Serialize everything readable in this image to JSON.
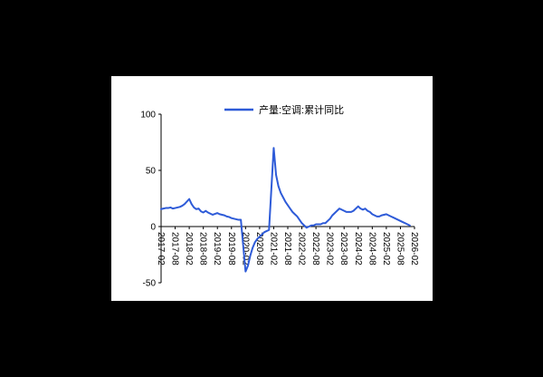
{
  "page": {
    "background_color": "#000000",
    "panel_background_color": "#ffffff"
  },
  "chart_data": {
    "type": "line",
    "title": "",
    "legend_position": "top-center",
    "grid": false,
    "axis_color": "#000000",
    "ylim": [
      -50,
      100
    ],
    "y_ticks": [
      100,
      50,
      0,
      -50
    ],
    "y_tick_labels": [
      "100",
      "50",
      "0",
      "-50"
    ],
    "x_tick_labels": [
      "2017-02",
      "2017-08",
      "2018-02",
      "2018-08",
      "2019-02",
      "2019-08",
      "2020-02",
      "2020-08",
      "2021-02",
      "2021-08",
      "2022-02",
      "2022-08",
      "2023-02",
      "2023-08",
      "2024-02",
      "2024-08",
      "2025-02",
      "2025-08",
      "2026-02"
    ],
    "series": [
      {
        "name": "产量:空调:累计同比",
        "color": "#2e5bd8",
        "x_dates": [
          "2017-02",
          "2017-03",
          "2017-04",
          "2017-05",
          "2017-06",
          "2017-07",
          "2017-08",
          "2017-09",
          "2017-10",
          "2017-11",
          "2017-12",
          "2018-02",
          "2018-03",
          "2018-04",
          "2018-05",
          "2018-06",
          "2018-07",
          "2018-08",
          "2018-09",
          "2018-10",
          "2018-11",
          "2018-12",
          "2019-02",
          "2019-03",
          "2019-04",
          "2019-05",
          "2019-06",
          "2019-07",
          "2019-08",
          "2019-09",
          "2019-10",
          "2019-11",
          "2019-12",
          "2020-02",
          "2020-03",
          "2020-04",
          "2020-05",
          "2020-06",
          "2020-07",
          "2020-08",
          "2020-09",
          "2020-10",
          "2020-11",
          "2020-12",
          "2021-02",
          "2021-03",
          "2021-04",
          "2021-05",
          "2021-06",
          "2021-07",
          "2021-08",
          "2021-09",
          "2021-10",
          "2021-11",
          "2021-12",
          "2022-02",
          "2022-03",
          "2022-04",
          "2022-05",
          "2022-06",
          "2022-07",
          "2022-08",
          "2022-09",
          "2022-10",
          "2022-11",
          "2022-12",
          "2023-02",
          "2023-03",
          "2023-04",
          "2023-05",
          "2023-06",
          "2023-07",
          "2023-08",
          "2023-09",
          "2023-10",
          "2023-11",
          "2023-12",
          "2024-02",
          "2024-03",
          "2024-04",
          "2024-05",
          "2024-06",
          "2024-07",
          "2024-08",
          "2024-09",
          "2024-10",
          "2024-11",
          "2024-12",
          "2025-02",
          "2025-03",
          "2025-04",
          "2025-05",
          "2025-06",
          "2025-07",
          "2025-08",
          "2025-09",
          "2025-10",
          "2025-11",
          "2025-12"
        ],
        "values": [
          15.5,
          16,
          16.5,
          16.5,
          17,
          16,
          16.5,
          17,
          17.5,
          18.5,
          20,
          24.5,
          20,
          17,
          15.5,
          16,
          13.5,
          12.5,
          14,
          12.5,
          11.5,
          10.5,
          12,
          11,
          10.5,
          10,
          9,
          8.5,
          7.5,
          7,
          6.5,
          6,
          6,
          -40,
          -35,
          -26,
          -19,
          -14,
          -11,
          -9,
          -7,
          -5,
          -4,
          -3,
          70,
          46,
          36,
          30,
          26,
          22,
          19,
          16,
          13,
          11,
          9,
          3,
          1,
          -1,
          0,
          1,
          1,
          2,
          2,
          2,
          3,
          3,
          7,
          10,
          12,
          14,
          16,
          15,
          14,
          13,
          13,
          13,
          14,
          18,
          16,
          15,
          16,
          14,
          13,
          11,
          10,
          9,
          9,
          10,
          11,
          10,
          9,
          8,
          7,
          6,
          5,
          4,
          3,
          2,
          1
        ]
      }
    ]
  }
}
